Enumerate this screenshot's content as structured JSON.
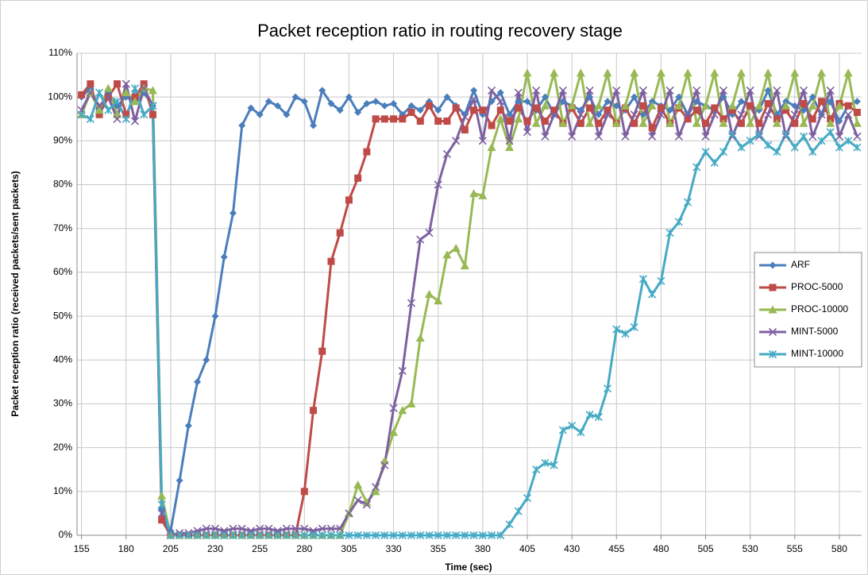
{
  "chart_data": {
    "type": "line",
    "title": "Packet reception ratio in routing recovery stage",
    "xlabel": "Time (sec)",
    "ylabel": "Packet reception ratio (received packets/sent packets)",
    "x": [
      155,
      160,
      165,
      170,
      175,
      180,
      185,
      190,
      195,
      200,
      205,
      210,
      215,
      220,
      225,
      230,
      235,
      240,
      245,
      250,
      255,
      260,
      265,
      270,
      275,
      280,
      285,
      290,
      295,
      300,
      305,
      310,
      315,
      320,
      325,
      330,
      335,
      340,
      345,
      350,
      355,
      360,
      365,
      370,
      375,
      380,
      385,
      390,
      395,
      400,
      405,
      410,
      415,
      420,
      425,
      430,
      435,
      440,
      445,
      450,
      455,
      460,
      465,
      470,
      475,
      480,
      485,
      490,
      495,
      500,
      505,
      510,
      515,
      520,
      525,
      530,
      535,
      540,
      545,
      550,
      555,
      560,
      565,
      570,
      575,
      580,
      585,
      590
    ],
    "xlim": [
      152.5,
      592.5
    ],
    "xticks": [
      155,
      180,
      205,
      230,
      255,
      280,
      305,
      330,
      355,
      380,
      405,
      430,
      455,
      480,
      505,
      530,
      555,
      580
    ],
    "ylim": [
      0,
      110
    ],
    "yticks": [
      {
        "value": 0,
        "label": "0%"
      },
      {
        "value": 10,
        "label": "10%"
      },
      {
        "value": 20,
        "label": "20%"
      },
      {
        "value": 30,
        "label": "30%"
      },
      {
        "value": 40,
        "label": "40%"
      },
      {
        "value": 50,
        "label": "50%"
      },
      {
        "value": 60,
        "label": "60%"
      },
      {
        "value": 70,
        "label": "70%"
      },
      {
        "value": 80,
        "label": "80%"
      },
      {
        "value": 90,
        "label": "90%"
      },
      {
        "value": 100,
        "label": "100%"
      },
      {
        "value": 110,
        "label": "110%"
      }
    ],
    "grid": true,
    "legend": "right",
    "series": [
      {
        "name": "ARF",
        "color": "#4a7ebb",
        "marker": "diamond",
        "values": [
          100,
          102,
          97,
          101,
          98,
          100,
          99,
          101,
          98,
          6,
          1,
          12.5,
          25,
          35,
          40,
          50,
          63.5,
          73.5,
          93.5,
          97.5,
          96,
          99,
          98,
          96,
          100,
          99,
          93.5,
          101.5,
          98.5,
          97,
          100,
          96.5,
          98.5,
          99,
          98,
          98.5,
          96,
          98,
          97,
          99,
          97,
          100,
          98,
          96,
          101.5,
          96,
          99,
          101,
          96,
          99,
          99,
          97,
          100,
          96,
          99,
          98,
          97,
          100,
          96,
          99,
          98,
          97,
          100,
          96,
          99,
          98,
          97,
          100,
          96,
          99,
          98,
          97,
          100,
          96,
          99,
          98,
          97,
          101.5,
          96,
          99,
          98,
          97,
          100,
          96,
          99,
          94.5,
          98,
          99
        ]
      },
      {
        "name": "PROC-5000",
        "color": "#be4b48",
        "marker": "square",
        "values": [
          100.5,
          103,
          96,
          100,
          103,
          96,
          100,
          103,
          96,
          3.5,
          0,
          0,
          0,
          0,
          0,
          0,
          0,
          0,
          0,
          0,
          0,
          0,
          0,
          0,
          0,
          10,
          28.5,
          42,
          62.5,
          69,
          76.5,
          81.5,
          87.5,
          95,
          95,
          95,
          95,
          96.5,
          94.5,
          98,
          94.5,
          94.5,
          97.5,
          92.5,
          97,
          97,
          93.5,
          97,
          94.5,
          97.5,
          94.5,
          97.5,
          94.5,
          97,
          94,
          97.5,
          94,
          97.5,
          94,
          97,
          94,
          97.5,
          94,
          98,
          93,
          97.5,
          94,
          97.5,
          95,
          97,
          94,
          97.5,
          95,
          97,
          94,
          98,
          94,
          98.5,
          95,
          97,
          94,
          98.5,
          95,
          99,
          95,
          98.5,
          98,
          96.5
        ]
      },
      {
        "name": "PROC-10000",
        "color": "#98b954",
        "marker": "triangle",
        "values": [
          96,
          101,
          97,
          102,
          96,
          101,
          99,
          102,
          101.5,
          9,
          0,
          0,
          0,
          0,
          0,
          0,
          0,
          0,
          0,
          0,
          0,
          0,
          0,
          0,
          0,
          0,
          0,
          0,
          0,
          0,
          5,
          11.5,
          7.5,
          10,
          17,
          23.5,
          28.5,
          30,
          45,
          55,
          53.5,
          64,
          65.5,
          61.5,
          78,
          77.5,
          88.5,
          95,
          88.5,
          95,
          105.5,
          94,
          98,
          105.5,
          94,
          98,
          105.5,
          94,
          98,
          105.5,
          94,
          98,
          105.5,
          94,
          98,
          105.5,
          94,
          98,
          105.5,
          94,
          98,
          105.5,
          94,
          98,
          105.5,
          94,
          98,
          105.5,
          94,
          98,
          105.5,
          94,
          98,
          105.5,
          94,
          98,
          105.5,
          94
        ]
      },
      {
        "name": "MINT-5000",
        "color": "#7d60a0",
        "marker": "cross",
        "values": [
          97,
          101,
          98,
          100,
          95,
          103,
          94.5,
          102,
          98,
          5,
          0,
          0.5,
          0.5,
          1,
          1.5,
          1.5,
          1,
          1.5,
          1.5,
          1,
          1.5,
          1.5,
          1,
          1.5,
          1.5,
          1.5,
          1,
          1.5,
          1.5,
          1.5,
          5,
          8,
          7,
          11,
          16,
          29,
          37.5,
          53,
          67.5,
          69,
          80,
          87,
          90,
          95.5,
          99.5,
          90,
          101.5,
          99,
          90,
          101,
          92,
          101.5,
          91,
          96,
          101.5,
          91,
          96,
          101.5,
          91,
          96,
          101.5,
          91,
          96,
          101.5,
          91,
          96,
          101.5,
          91,
          96,
          101.5,
          91,
          96,
          101.5,
          91,
          96,
          101.5,
          91,
          96,
          101.5,
          91,
          96,
          101.5,
          91,
          96,
          101.5,
          91,
          96,
          91
        ]
      },
      {
        "name": "MINT-10000",
        "color": "#46aac5",
        "marker": "star",
        "values": [
          96,
          95,
          101,
          97,
          99,
          95,
          102,
          96,
          98,
          7,
          0,
          0,
          0,
          0,
          0,
          0,
          0,
          0,
          0,
          0,
          0,
          0,
          0,
          0,
          0,
          0,
          0,
          0,
          0,
          0,
          0,
          0,
          0,
          0,
          0,
          0,
          0,
          0,
          0,
          0,
          0,
          0,
          0,
          0,
          0,
          0,
          0,
          0,
          2.5,
          5.5,
          8.5,
          15,
          16.5,
          16,
          24,
          25,
          23.5,
          27.5,
          27,
          33.5,
          47,
          46,
          47.5,
          58.5,
          55,
          58,
          69,
          71.5,
          76,
          84,
          87.5,
          85,
          87.5,
          91.5,
          88.5,
          90,
          91.5,
          89,
          87.5,
          91.5,
          88.5,
          91,
          87.5,
          90,
          92,
          88.5,
          90,
          88.5
        ]
      }
    ]
  }
}
